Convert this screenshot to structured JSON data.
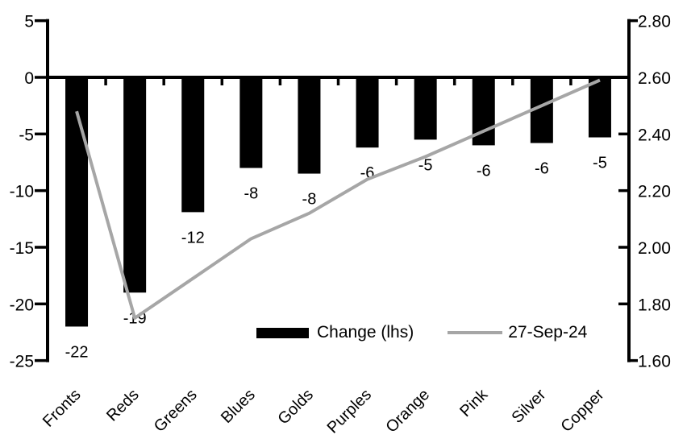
{
  "chart_data": {
    "type": "combo-bar-line",
    "title": "",
    "background": "#ffffff",
    "grid": false,
    "categories": [
      "Fronts",
      "Reds",
      "Greens",
      "Blues",
      "Golds",
      "Purples",
      "Orange",
      "Pink",
      "Silver",
      "Copper"
    ],
    "series": [
      {
        "name": "Change (lhs)",
        "type": "bar",
        "axis": "left",
        "color": "#000000",
        "values": [
          -22,
          -19,
          -12,
          -8,
          -8,
          -6,
          -5,
          -6,
          -6,
          -5
        ],
        "data_labels": [
          "-22",
          "-19",
          "-12",
          "-8",
          "-8",
          "-6",
          "-5",
          "-6",
          "-6",
          "-5"
        ],
        "values_precise": [
          -22,
          -19,
          -11.9,
          -8,
          -8.5,
          -6.2,
          -5.5,
          -6,
          -5.8,
          -5.3
        ]
      },
      {
        "name": "27-Sep-24",
        "type": "line",
        "axis": "right",
        "color": "#a6a6a6",
        "values": [
          2.48,
          1.75,
          1.89,
          2.03,
          2.12,
          2.24,
          2.32,
          2.41,
          2.5,
          2.59
        ]
      }
    ],
    "left_axis": {
      "min": -25,
      "max": 5,
      "tick_step": 5,
      "tick_labels": [
        "5",
        "0",
        "-5",
        "-10",
        "-15",
        "-20",
        "-25"
      ],
      "tick_values": [
        5,
        0,
        -5,
        -10,
        -15,
        -20,
        -25
      ]
    },
    "right_axis": {
      "min": 1.6,
      "max": 2.8,
      "tick_step": 0.2,
      "tick_labels": [
        "2.80",
        "2.60",
        "2.40",
        "2.20",
        "2.00",
        "1.80",
        "1.60"
      ],
      "tick_values": [
        2.8,
        2.6,
        2.4,
        2.2,
        2.0,
        1.8,
        1.6
      ]
    },
    "legend": {
      "position": "bottom-inside",
      "entries": [
        {
          "label": "Change (lhs)",
          "type": "bar",
          "color": "#000000"
        },
        {
          "label": "27-Sep-24",
          "type": "line",
          "color": "#a6a6a6"
        }
      ]
    },
    "axis_color": "#000000",
    "text_color": "#000000"
  }
}
